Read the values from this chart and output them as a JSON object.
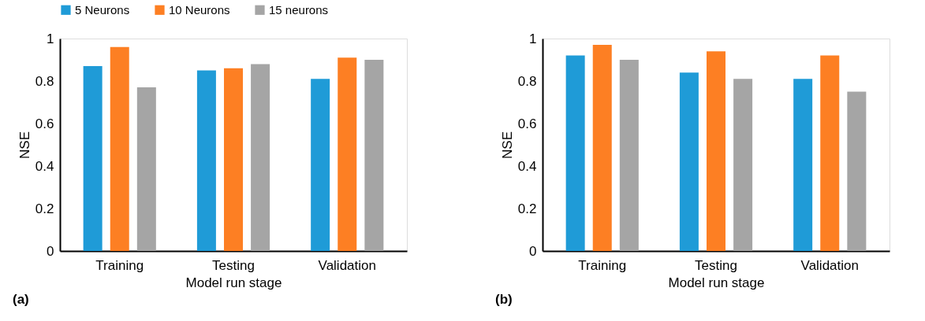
{
  "chart_data": [
    {
      "type": "bar",
      "xlabel": "Model run stage",
      "ylabel": "NSE",
      "categories": [
        "Training",
        "Testing",
        "Validation"
      ],
      "series": [
        {
          "name": "5 Neurons",
          "color": "#1f9bd7",
          "values": [
            0.87,
            0.85,
            0.81
          ]
        },
        {
          "name": "10 Neurons",
          "color": "#fd7f23",
          "values": [
            0.96,
            0.86,
            0.91
          ]
        },
        {
          "name": "15 neurons",
          "color": "#a5a5a5",
          "values": [
            0.77,
            0.88,
            0.9
          ]
        }
      ],
      "ylim": [
        0,
        1
      ],
      "yticks": [
        0,
        0.2,
        0.4,
        0.6,
        0.8,
        1
      ],
      "grid": false,
      "legend": "top",
      "annotations": [
        "(a)"
      ]
    },
    {
      "type": "bar",
      "xlabel": "Model run stage",
      "ylabel": "NSE",
      "categories": [
        "Training",
        "Testing",
        "Validation"
      ],
      "series": [
        {
          "name": "5 Neurons",
          "color": "#1f9bd7",
          "values": [
            0.92,
            0.84,
            0.81
          ]
        },
        {
          "name": "10 Neurons",
          "color": "#fd7f23",
          "values": [
            0.97,
            0.94,
            0.92
          ]
        },
        {
          "name": "15 neurons",
          "color": "#a5a5a5",
          "values": [
            0.9,
            0.81,
            0.75
          ]
        }
      ],
      "ylim": [
        0,
        1
      ],
      "yticks": [
        0,
        0.2,
        0.4,
        0.6,
        0.8,
        1
      ],
      "grid": false,
      "legend": "top",
      "annotations": [
        "(b)"
      ]
    }
  ]
}
